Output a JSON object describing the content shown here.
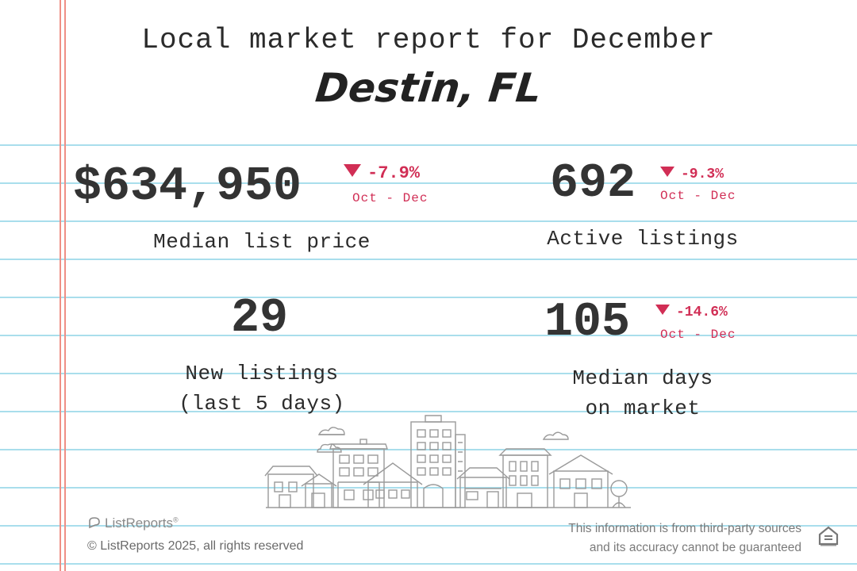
{
  "header": {
    "title": "Local market report for December",
    "city": "Destin, FL"
  },
  "stats": {
    "median_list_price": {
      "value": "$634,950",
      "change": "-7.9%",
      "range": "Oct - Dec",
      "label": "Median list price"
    },
    "active_listings": {
      "value": "692",
      "change": "-9.3%",
      "range": "Oct - Dec",
      "label": "Active listings"
    },
    "new_listings": {
      "value": "29",
      "label_line1": "New listings",
      "label_line2": "(last 5 days)"
    },
    "median_days": {
      "value": "105",
      "change": "-14.6%",
      "range": "Oct - Dec",
      "label_line1": "Median days",
      "label_line2": "on market"
    }
  },
  "footer": {
    "brand": "ListReports",
    "brand_mark": "®",
    "copyright": "© ListReports 2025, all rights reserved",
    "disclaimer_line1": "This information is from third-party sources",
    "disclaimer_line2": "and its accuracy cannot be guaranteed"
  },
  "colors": {
    "accent_red": "#d12e55",
    "rule_blue": "#a9deec",
    "margin_red": "#ef8f86",
    "text_dark": "#333333"
  },
  "icons": {
    "down_change": "down-triangle-icon",
    "brand": "listreports-logo-icon",
    "housing": "equal-housing-opportunity-icon",
    "illustration": "city-skyline-illustration"
  }
}
